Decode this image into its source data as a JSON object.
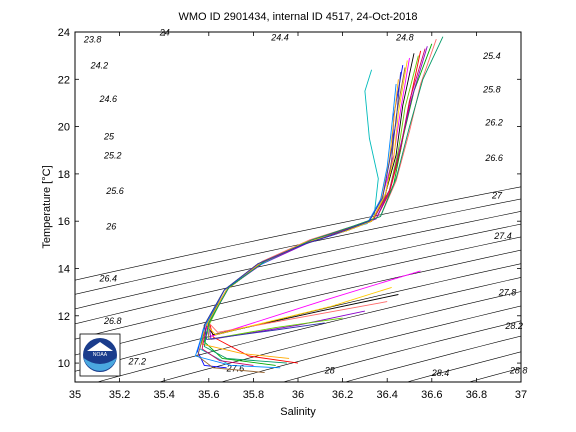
{
  "chart_data": {
    "type": "line",
    "title": "WMO ID 2901434, internal ID 4517, 24-Oct-2018",
    "xlabel": "Salinity",
    "ylabel": "Temperature [°C]",
    "xlim": [
      35,
      37
    ],
    "ylim": [
      9.2,
      24
    ],
    "x_ticks": [
      "35",
      "35.2",
      "35.4",
      "35.6",
      "35.8",
      "36",
      "36.2",
      "36.4",
      "36.6",
      "36.8",
      "37"
    ],
    "y_ticks": [
      "10",
      "12",
      "14",
      "16",
      "18",
      "20",
      "22",
      "24"
    ],
    "grid": false,
    "density_contours": [
      {
        "label": "23.8",
        "value": 23.8,
        "label_pos": [
          35.04,
          23.55
        ]
      },
      {
        "label": "24",
        "value": 24.0,
        "label_pos": [
          35.38,
          23.85
        ]
      },
      {
        "label": "24.2",
        "value": 24.2,
        "label_pos": [
          35.07,
          22.45
        ]
      },
      {
        "label": "24.4",
        "value": 24.4,
        "label_pos": [
          35.88,
          23.65
        ]
      },
      {
        "label": "24.6",
        "value": 24.6,
        "label_pos": [
          35.11,
          21.05
        ]
      },
      {
        "label": "24.8",
        "value": 24.8,
        "label_pos": [
          36.44,
          23.65
        ]
      },
      {
        "label": "25",
        "value": 25.0,
        "label_pos": [
          35.13,
          19.45
        ]
      },
      {
        "label": "25.2",
        "value": 25.2,
        "label_pos": [
          35.13,
          18.65
        ]
      },
      {
        "label": "25.4",
        "value": 25.4,
        "label_pos": [
          36.83,
          22.85
        ]
      },
      {
        "label": "25.6",
        "value": 25.6,
        "label_pos": [
          35.14,
          17.15
        ]
      },
      {
        "label": "25.8",
        "value": 25.8,
        "label_pos": [
          36.83,
          21.45
        ]
      },
      {
        "label": "26",
        "value": 26.0,
        "label_pos": [
          35.14,
          15.65
        ]
      },
      {
        "label": "26.2",
        "value": 26.2,
        "label_pos": [
          36.84,
          20.05
        ]
      },
      {
        "label": "26.4",
        "value": 26.4,
        "label_pos": [
          35.11,
          13.45
        ]
      },
      {
        "label": "26.6",
        "value": 26.6,
        "label_pos": [
          36.84,
          18.55
        ]
      },
      {
        "label": "26.8",
        "value": 26.8,
        "label_pos": [
          35.13,
          11.65
        ]
      },
      {
        "label": "27",
        "value": 27.0,
        "label_pos": [
          36.87,
          16.95
        ]
      },
      {
        "label": "27.2",
        "value": 27.2,
        "label_pos": [
          35.24,
          9.95
        ]
      },
      {
        "label": "27.4",
        "value": 27.4,
        "label_pos": [
          36.88,
          15.25
        ]
      },
      {
        "label": "27.6",
        "value": 27.6,
        "label_pos": [
          35.68,
          9.65
        ]
      },
      {
        "label": "27.8",
        "value": 27.8,
        "label_pos": [
          36.9,
          12.85
        ]
      },
      {
        "label": "28",
        "value": 28.0,
        "label_pos": [
          36.12,
          9.55
        ]
      },
      {
        "label": "28.2",
        "value": 28.2,
        "label_pos": [
          36.93,
          11.45
        ]
      },
      {
        "label": "28.4",
        "value": 28.4,
        "label_pos": [
          36.6,
          9.45
        ]
      },
      {
        "label": "28.8",
        "value": 28.8,
        "label_pos": [
          36.95,
          9.55
        ]
      }
    ],
    "series": [
      {
        "color": "#0000ff",
        "x": [
          36.47,
          36.43,
          36.42,
          36.39,
          36.33,
          36.22,
          36.02,
          35.82,
          35.67,
          35.58,
          35.55,
          35.58,
          35.68
        ],
        "y": [
          22.6,
          20.5,
          18.5,
          17.0,
          16.0,
          15.6,
          15.0,
          14.2,
          13.1,
          11.6,
          10.5,
          9.9,
          9.8
        ]
      },
      {
        "color": "#ff0000",
        "x": [
          36.55,
          36.5,
          36.46,
          36.41,
          36.35,
          36.24,
          36.04,
          35.83,
          35.68,
          35.6,
          35.62,
          35.78,
          36.0
        ],
        "y": [
          23.2,
          21.0,
          19.0,
          17.2,
          16.1,
          15.7,
          15.1,
          14.2,
          13.1,
          11.8,
          11.1,
          10.3,
          10.0
        ]
      },
      {
        "color": "#00aa00",
        "x": [
          36.6,
          36.52,
          36.47,
          36.43,
          36.37,
          36.25,
          36.06,
          35.84,
          35.68,
          35.6,
          35.58,
          35.66,
          35.9
        ],
        "y": [
          23.5,
          21.5,
          19.5,
          17.6,
          16.2,
          15.8,
          15.2,
          14.3,
          13.1,
          11.7,
          10.9,
          10.2,
          9.9
        ]
      },
      {
        "color": "#ff00ff",
        "x": [
          36.5,
          36.46,
          36.43,
          36.38,
          36.32,
          36.21,
          36.03,
          35.83,
          35.68,
          35.59,
          35.6,
          36.1,
          36.55
        ],
        "y": [
          22.9,
          20.7,
          18.8,
          17.1,
          16.0,
          15.6,
          15.1,
          14.2,
          13.1,
          11.5,
          11.1,
          12.6,
          13.9
        ]
      },
      {
        "color": "#00bbbb",
        "x": [
          36.33,
          36.3,
          36.32,
          36.36,
          36.34,
          36.23,
          36.03,
          35.82,
          35.67,
          35.58,
          35.56,
          35.68
        ],
        "y": [
          22.4,
          21.5,
          19.5,
          17.8,
          16.1,
          15.7,
          15.1,
          14.2,
          13.1,
          11.6,
          10.6,
          10.0
        ]
      },
      {
        "color": "#000000",
        "x": [
          36.52,
          36.47,
          36.44,
          36.39,
          36.33,
          36.22,
          36.03,
          35.83,
          35.68,
          35.59,
          35.62,
          36.1,
          36.45
        ],
        "y": [
          23.1,
          20.9,
          18.8,
          17.1,
          16.0,
          15.6,
          15.1,
          14.2,
          13.1,
          11.6,
          11.2,
          12.2,
          12.9
        ]
      },
      {
        "color": "#ffaa00",
        "x": [
          36.45,
          36.43,
          36.41,
          36.38,
          36.32,
          36.21,
          36.02,
          35.82,
          35.67,
          35.58,
          35.57,
          35.75,
          35.96
        ],
        "y": [
          22.0,
          20.3,
          18.6,
          17.1,
          16.0,
          15.6,
          15.0,
          14.2,
          13.1,
          11.6,
          10.8,
          10.4,
          10.2
        ]
      },
      {
        "color": "#8800cc",
        "x": [
          36.58,
          36.51,
          36.46,
          36.41,
          36.35,
          36.24,
          36.05,
          35.84,
          35.69,
          35.6,
          35.61,
          36.0,
          36.3
        ],
        "y": [
          23.4,
          21.2,
          19.2,
          17.3,
          16.1,
          15.7,
          15.1,
          14.2,
          13.2,
          11.7,
          11.0,
          11.6,
          12.2
        ]
      },
      {
        "color": "#996633",
        "x": [
          36.48,
          36.44,
          36.42,
          36.39,
          36.33,
          36.22,
          36.03,
          35.83,
          35.67,
          35.59,
          35.55,
          35.62,
          35.85
        ],
        "y": [
          22.5,
          20.4,
          18.6,
          17.0,
          16.0,
          15.6,
          15.1,
          14.2,
          13.1,
          11.6,
          10.3,
          9.8,
          9.6
        ]
      },
      {
        "color": "#ff6666",
        "x": [
          36.62,
          36.55,
          36.5,
          36.44,
          36.37,
          36.25,
          36.05,
          35.84,
          35.69,
          35.6,
          35.64,
          36.05,
          36.4
        ],
        "y": [
          23.7,
          21.8,
          19.8,
          17.7,
          16.2,
          15.8,
          15.2,
          14.3,
          13.2,
          11.7,
          11.3,
          12.0,
          12.6
        ]
      },
      {
        "color": "#0088ff",
        "x": [
          36.44,
          36.42,
          36.4,
          36.37,
          36.31,
          36.2,
          36.01,
          35.82,
          35.67,
          35.58,
          35.54,
          35.7,
          35.92
        ],
        "y": [
          21.8,
          20.0,
          18.3,
          16.9,
          15.9,
          15.6,
          15.0,
          14.1,
          13.1,
          11.5,
          10.3,
          9.9,
          9.8
        ]
      },
      {
        "color": "#66cc00",
        "x": [
          36.54,
          36.48,
          36.45,
          36.41,
          36.34,
          36.23,
          36.04,
          35.83,
          35.68,
          35.6,
          35.6,
          35.9,
          36.2
        ],
        "y": [
          23.0,
          20.8,
          19.0,
          17.3,
          16.1,
          15.7,
          15.1,
          14.2,
          13.1,
          11.6,
          11.0,
          11.5,
          11.9
        ]
      },
      {
        "color": "#cc0066",
        "x": [
          36.57,
          36.5,
          36.46,
          36.41,
          36.34,
          36.23,
          36.04,
          35.83,
          35.68,
          35.59,
          35.57,
          35.65,
          35.8
        ],
        "y": [
          23.3,
          21.1,
          19.1,
          17.3,
          16.1,
          15.7,
          15.1,
          14.2,
          13.1,
          11.6,
          10.6,
          10.1,
          9.9
        ]
      },
      {
        "color": "#ffcc00",
        "x": [
          36.49,
          36.45,
          36.43,
          36.39,
          36.33,
          36.22,
          36.03,
          35.83,
          35.68,
          35.59,
          35.63,
          36.15,
          36.42
        ],
        "y": [
          22.8,
          20.6,
          18.7,
          17.1,
          16.0,
          15.6,
          15.1,
          14.2,
          13.1,
          11.6,
          11.2,
          12.4,
          13.2
        ]
      },
      {
        "color": "#009966",
        "x": [
          36.65,
          36.56,
          36.5,
          36.44,
          36.37,
          36.25,
          36.06,
          35.85,
          35.69,
          35.6,
          35.58,
          35.68,
          35.95
        ],
        "y": [
          23.8,
          22.0,
          20.0,
          17.8,
          16.2,
          15.8,
          15.2,
          14.3,
          13.2,
          11.7,
          10.7,
          10.2,
          10.0
        ]
      },
      {
        "color": "#3333aa",
        "x": [
          36.46,
          36.44,
          36.41,
          36.38,
          36.32,
          36.21,
          36.02,
          35.82,
          35.67,
          35.58,
          35.59,
          35.9,
          36.12
        ],
        "y": [
          22.3,
          20.2,
          18.5,
          17.0,
          16.0,
          15.6,
          15.0,
          14.2,
          13.1,
          11.6,
          11.0,
          11.4,
          11.7
        ]
      }
    ]
  }
}
